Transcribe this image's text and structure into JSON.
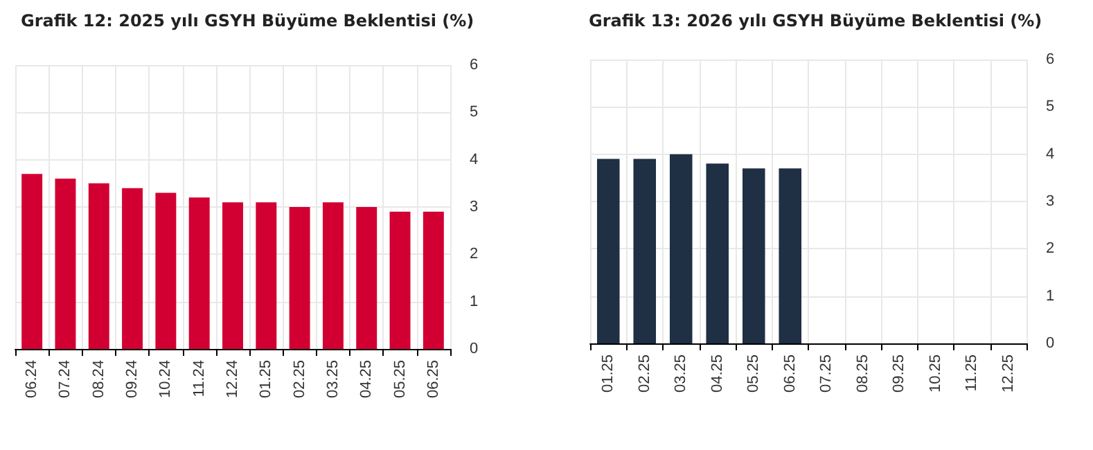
{
  "chart_data": [
    {
      "type": "bar",
      "title": "Grafik 12: 2025 yılı GSYH Büyüme Beklentisi (%)",
      "categories": [
        "06.24",
        "07.24",
        "08.24",
        "09.24",
        "10.24",
        "11.24",
        "12.24",
        "01.25",
        "02.25",
        "03.25",
        "04.25",
        "05.25",
        "06.25"
      ],
      "values": [
        3.7,
        3.6,
        3.5,
        3.4,
        3.3,
        3.2,
        3.1,
        3.1,
        3.0,
        3.1,
        3.0,
        2.9,
        2.9
      ],
      "color": "#d20032",
      "ylim": [
        0,
        6
      ],
      "yticks": [
        0,
        1,
        2,
        3,
        4,
        5,
        6
      ],
      "grid": true
    },
    {
      "type": "bar",
      "title": "Grafik 13: 2026 yılı GSYH Büyüme Beklentisi (%)",
      "categories": [
        "01.25",
        "02.25",
        "03.25",
        "04.25",
        "05.25",
        "06.25",
        "07.25",
        "08.25",
        "09.25",
        "10.25",
        "11.25",
        "12.25"
      ],
      "values": [
        3.9,
        3.9,
        4.0,
        3.8,
        3.7,
        3.7,
        null,
        null,
        null,
        null,
        null,
        null
      ],
      "color": "#1f2f44",
      "ylim": [
        0,
        6
      ],
      "yticks": [
        0,
        1,
        2,
        3,
        4,
        5,
        6
      ],
      "grid": true
    }
  ]
}
